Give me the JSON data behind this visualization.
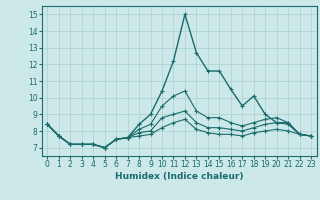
{
  "xlabel": "Humidex (Indice chaleur)",
  "bg_color": "#cce8e8",
  "line_color": "#1a6b6b",
  "grid_color": "#aacfcf",
  "xlim": [
    -0.5,
    23.5
  ],
  "ylim": [
    6.5,
    15.5
  ],
  "yticks": [
    7,
    8,
    9,
    10,
    11,
    12,
    13,
    14,
    15
  ],
  "xticks": [
    0,
    1,
    2,
    3,
    4,
    5,
    6,
    7,
    8,
    9,
    10,
    11,
    12,
    13,
    14,
    15,
    16,
    17,
    18,
    19,
    20,
    21,
    22,
    23
  ],
  "series": [
    [
      8.4,
      7.7,
      7.2,
      7.2,
      7.2,
      7.0,
      7.5,
      7.6,
      8.4,
      9.0,
      10.4,
      12.2,
      15.0,
      12.7,
      11.6,
      11.6,
      10.5,
      9.5,
      10.1,
      9.0,
      8.5,
      8.5,
      7.8,
      7.7
    ],
    [
      8.4,
      7.7,
      7.2,
      7.2,
      7.2,
      7.0,
      7.5,
      7.6,
      8.1,
      8.4,
      9.5,
      10.1,
      10.4,
      9.2,
      8.8,
      8.8,
      8.5,
      8.3,
      8.5,
      8.7,
      8.8,
      8.5,
      7.8,
      7.7
    ],
    [
      8.4,
      7.7,
      7.2,
      7.2,
      7.2,
      7.0,
      7.5,
      7.6,
      7.9,
      8.0,
      8.8,
      9.0,
      9.2,
      8.5,
      8.2,
      8.2,
      8.1,
      8.0,
      8.2,
      8.4,
      8.5,
      8.4,
      7.8,
      7.7
    ],
    [
      8.4,
      7.7,
      7.2,
      7.2,
      7.2,
      7.0,
      7.5,
      7.6,
      7.7,
      7.8,
      8.2,
      8.5,
      8.7,
      8.1,
      7.9,
      7.8,
      7.8,
      7.7,
      7.9,
      8.0,
      8.1,
      8.0,
      7.8,
      7.7
    ]
  ]
}
